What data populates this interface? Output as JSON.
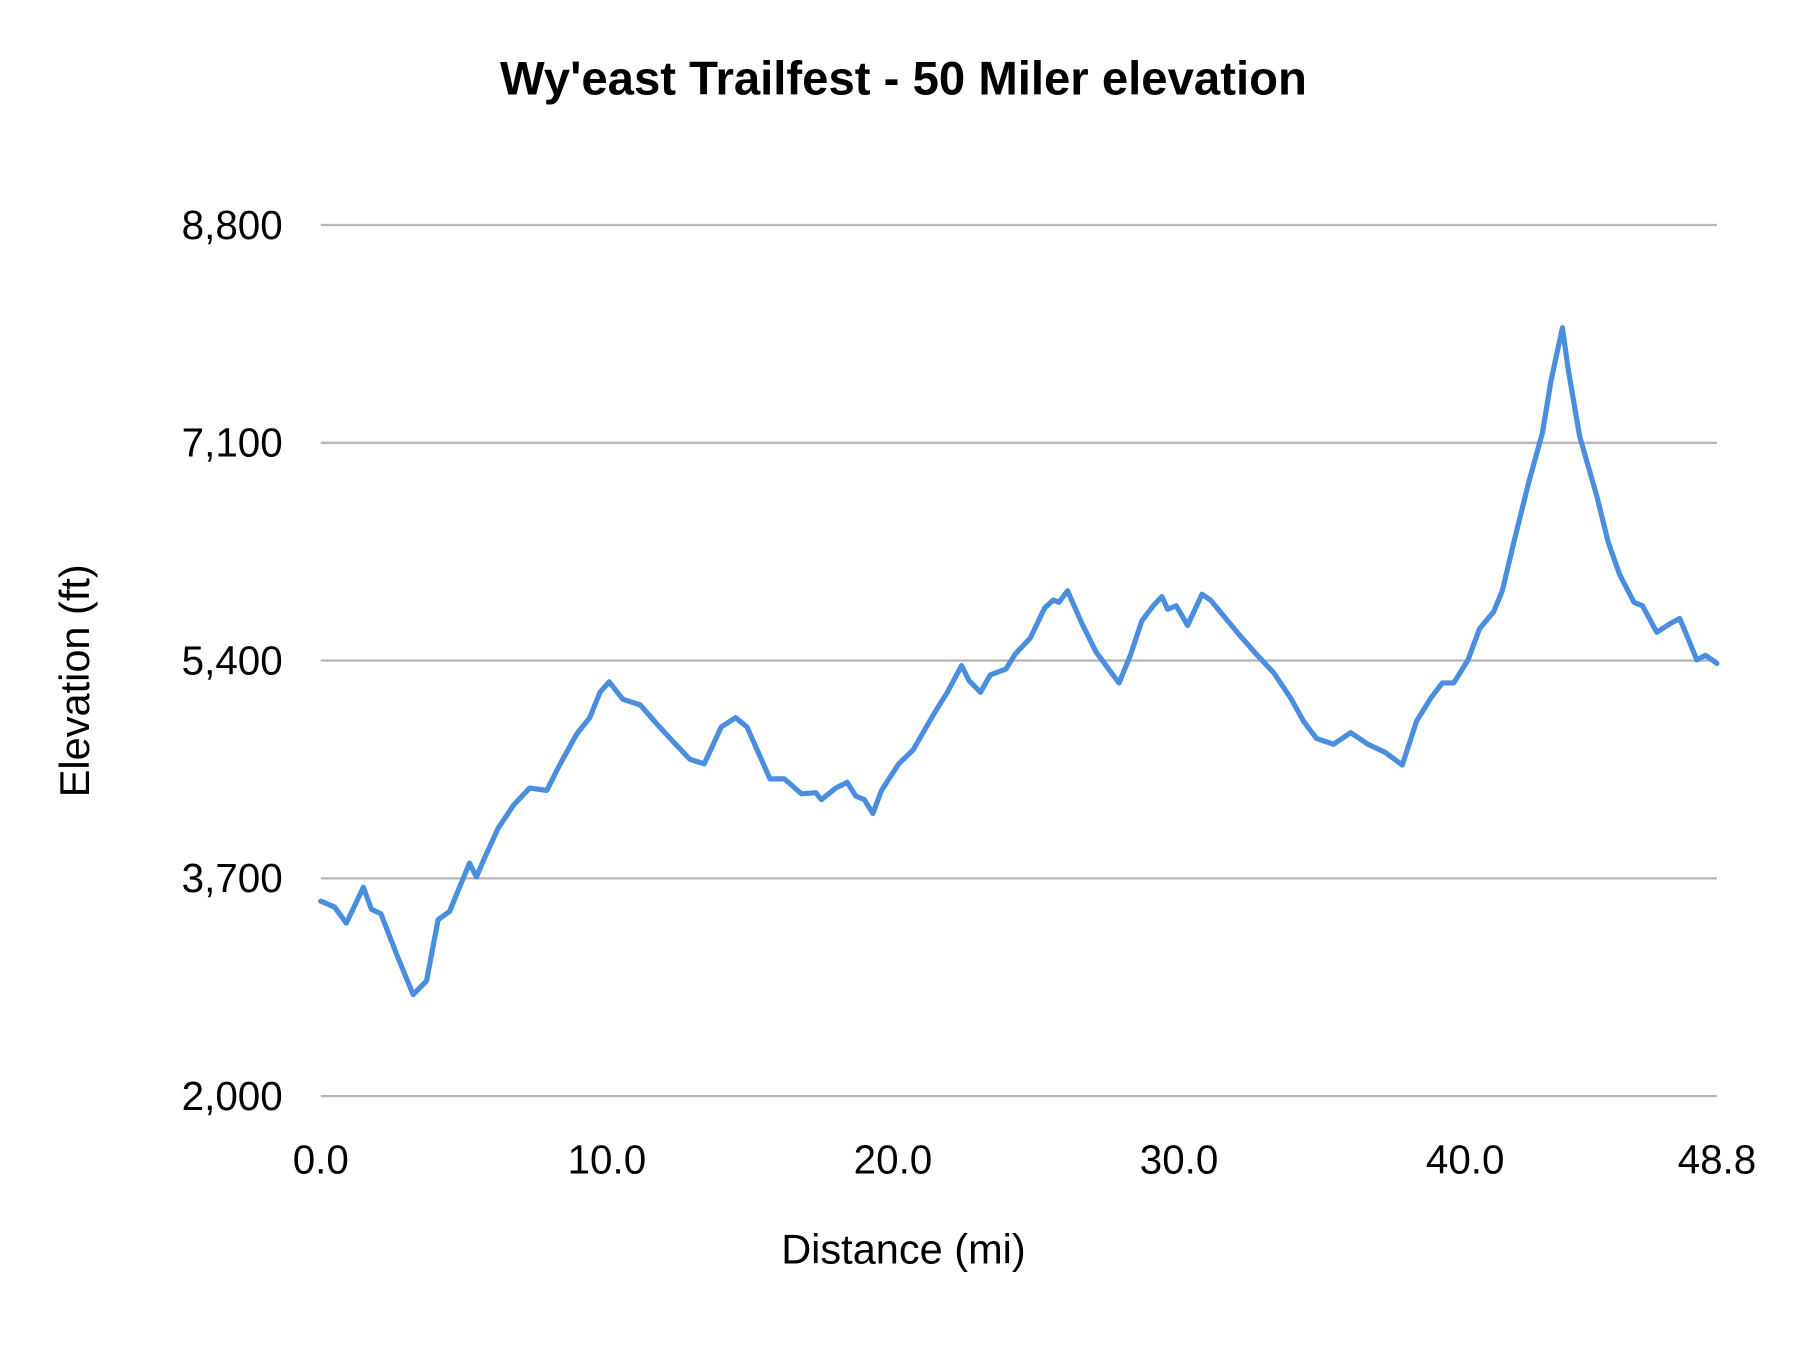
{
  "chart_data": {
    "type": "line",
    "title": "Wy'east Trailfest - 50 Miler elevation",
    "xlabel": "Distance (mi)",
    "ylabel": "Elevation (ft)",
    "xlim": [
      0,
      48.8
    ],
    "ylim": [
      2000,
      8800
    ],
    "x_ticks": [
      "0.0",
      "10.0",
      "20.0",
      "30.0",
      "40.0",
      "48.8"
    ],
    "x_tick_values": [
      0,
      10,
      20,
      30,
      40,
      48.8
    ],
    "y_ticks": [
      "2,000",
      "3,700",
      "5,400",
      "7,100",
      "8,800"
    ],
    "y_tick_values": [
      2000,
      3700,
      5400,
      7100,
      8800
    ],
    "grid": "horizontal",
    "legend": "none",
    "line_color": "#4a8ee0",
    "grid_color": "#b7b7b7",
    "series": [
      {
        "name": "Elevation",
        "x": [
          0,
          0.48,
          0.89,
          1.09,
          1.49,
          1.77,
          2.1,
          2.7,
          3.23,
          3.7,
          4.1,
          4.5,
          5.2,
          5.44,
          5.7,
          6.2,
          6.73,
          7.3,
          7.9,
          8.35,
          8.95,
          9.4,
          9.76,
          10.08,
          10.56,
          11.17,
          11.77,
          12.4,
          12.9,
          13.4,
          14.0,
          14.5,
          14.9,
          15.7,
          16.2,
          16.8,
          17.3,
          17.5,
          18.0,
          18.4,
          18.7,
          19.0,
          19.3,
          19.6,
          20.2,
          20.7,
          21.4,
          21.9,
          22.4,
          22.66,
          23.06,
          23.4,
          23.95,
          24.27,
          24.8,
          25.3,
          25.6,
          25.8,
          26.1,
          26.6,
          27.1,
          27.6,
          27.9,
          28.3,
          28.7,
          29.1,
          29.4,
          29.6,
          29.9,
          30.3,
          30.8,
          31.1,
          31.6,
          32.1,
          32.7,
          33.3,
          33.9,
          34.35,
          34.8,
          35.4,
          36.0,
          36.6,
          37.2,
          37.8,
          38.3,
          38.8,
          39.2,
          39.6,
          40.1,
          40.5,
          41.0,
          41.3,
          41.7,
          42.2,
          42.7,
          43.0,
          43.4,
          43.6,
          44.0,
          44.6,
          45.0,
          45.4,
          45.9,
          46.2,
          46.7,
          47.2,
          47.5,
          48.1,
          48.4,
          48.8
        ],
        "y": [
          3522,
          3477,
          3351,
          3441,
          3630,
          3459,
          3423,
          3081,
          2793,
          2901,
          3378,
          3441,
          3819,
          3711,
          3846,
          4090,
          4270,
          4405,
          4387,
          4585,
          4828,
          4954,
          5152,
          5234,
          5098,
          5053,
          4900,
          4747,
          4630,
          4594,
          4882,
          4954,
          4882,
          4477,
          4477,
          4360,
          4369,
          4315,
          4405,
          4450,
          4342,
          4315,
          4207,
          4387,
          4594,
          4702,
          4972,
          5152,
          5360,
          5243,
          5152,
          5288,
          5333,
          5450,
          5576,
          5810,
          5873,
          5855,
          5945,
          5693,
          5468,
          5315,
          5225,
          5441,
          5711,
          5828,
          5900,
          5801,
          5828,
          5675,
          5918,
          5873,
          5738,
          5603,
          5450,
          5306,
          5107,
          4927,
          4792,
          4747,
          4837,
          4747,
          4684,
          4585,
          4927,
          5107,
          5225,
          5225,
          5405,
          5648,
          5783,
          5945,
          6323,
          6774,
          7179,
          7584,
          7998,
          7674,
          7152,
          6683,
          6323,
          6071,
          5855,
          5828,
          5621,
          5693,
          5729,
          5405,
          5441,
          5378
        ]
      }
    ]
  }
}
